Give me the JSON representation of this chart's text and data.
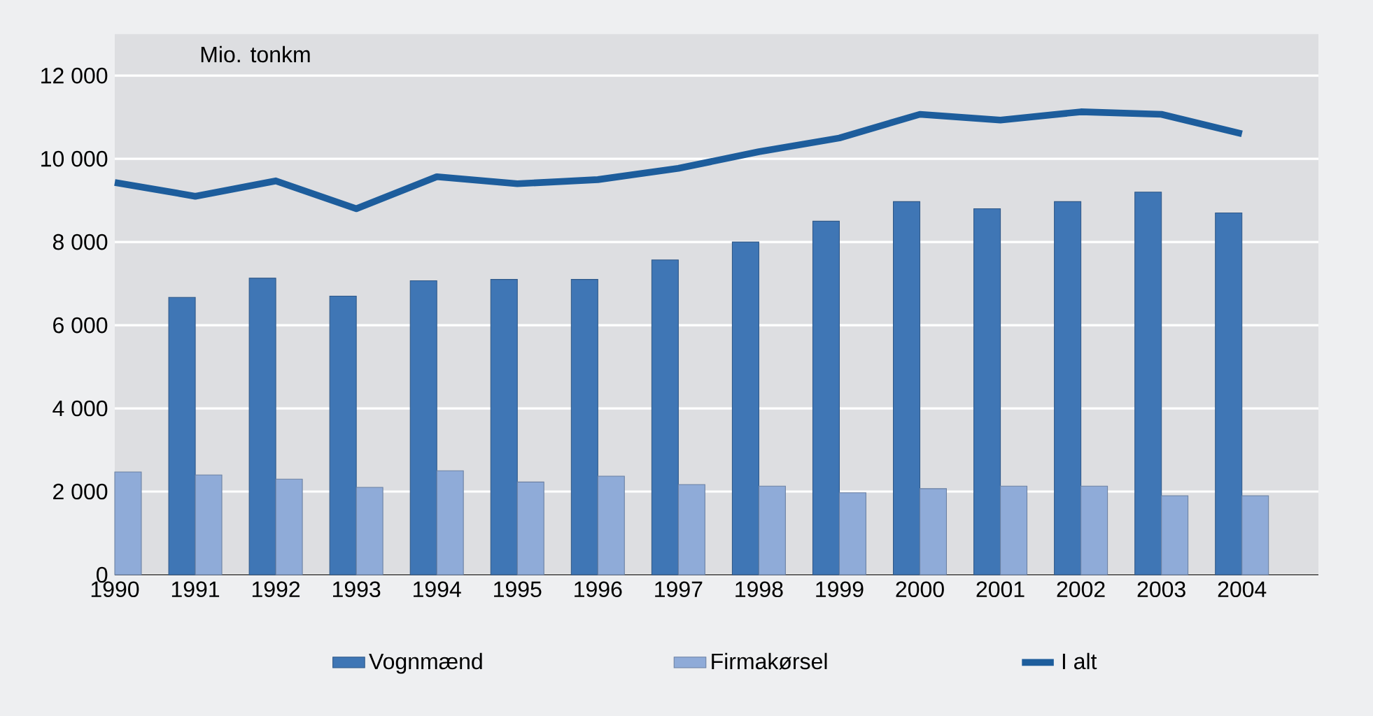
{
  "chart_data": {
    "type": "bar",
    "ylabel": "Mio. tonkm",
    "categories": [
      "1990",
      "1991",
      "1992",
      "1993",
      "1994",
      "1995",
      "1996",
      "1997",
      "1998",
      "1999",
      "2000",
      "2001",
      "2002",
      "2003",
      "2004"
    ],
    "series": [
      {
        "name": "Vognmænd",
        "color": "#3f76b5",
        "values": [
          null,
          6670,
          7130,
          6700,
          7070,
          7100,
          7100,
          7570,
          8000,
          8500,
          8970,
          8800,
          8970,
          9200,
          8700
        ]
      },
      {
        "name": "Firmakørsel",
        "color": "#8fabd8",
        "values": [
          2470,
          2400,
          2300,
          2100,
          2500,
          2230,
          2370,
          2170,
          2130,
          1970,
          2070,
          2130,
          2130,
          1900,
          1900
        ]
      },
      {
        "name": "I alt",
        "type": "line",
        "color": "#1d5d9c",
        "values": [
          9430,
          9100,
          9470,
          8800,
          9570,
          9400,
          9500,
          9770,
          10170,
          10500,
          11070,
          10930,
          11130,
          11070,
          10600
        ]
      }
    ],
    "ylim": [
      0,
      13000
    ],
    "yticks": [
      {
        "value": 0,
        "label": "0"
      },
      {
        "value": 2000,
        "label": "2 000"
      },
      {
        "value": 4000,
        "label": "4 000"
      },
      {
        "value": 6000,
        "label": "6 000"
      },
      {
        "value": 8000,
        "label": "8 000"
      },
      {
        "value": 10000,
        "label": "10 000"
      },
      {
        "value": 12000,
        "label": "12 000"
      }
    ],
    "grid": "y",
    "legend": "bottom"
  }
}
